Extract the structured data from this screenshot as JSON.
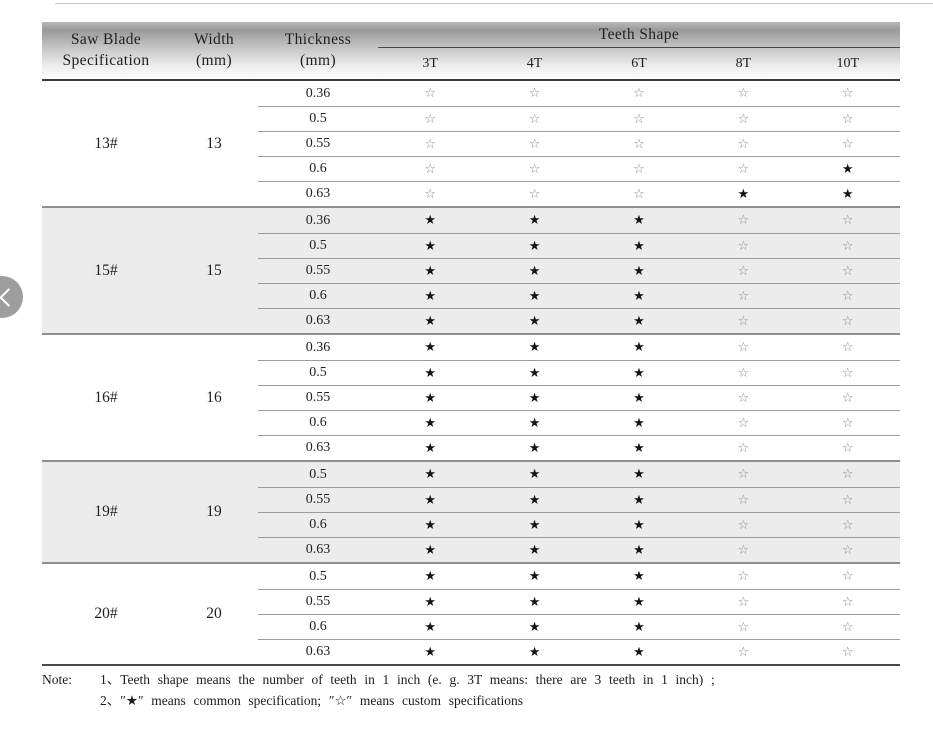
{
  "header": {
    "spec_line1": "Saw Blade",
    "spec_line2": "Specification",
    "width_line1": "Width",
    "width_line2": "(mm)",
    "thickness_line1": "Thickness",
    "thickness_line2": "(mm)",
    "teeth_shape": "Teeth Shape",
    "teeth_columns": [
      "3T",
      "4T",
      "6T",
      "8T",
      "10T"
    ]
  },
  "groups": [
    {
      "spec": "13#",
      "width": "13",
      "shaded": false,
      "rows": [
        {
          "thickness": "0.36",
          "stars": [
            "☆",
            "☆",
            "☆",
            "☆",
            "☆"
          ]
        },
        {
          "thickness": "0.5",
          "stars": [
            "☆",
            "☆",
            "☆",
            "☆",
            "☆"
          ]
        },
        {
          "thickness": "0.55",
          "stars": [
            "☆",
            "☆",
            "☆",
            "☆",
            "☆"
          ]
        },
        {
          "thickness": "0.6",
          "stars": [
            "☆",
            "☆",
            "☆",
            "☆",
            "★"
          ]
        },
        {
          "thickness": "0.63",
          "stars": [
            "☆",
            "☆",
            "☆",
            "★",
            "★"
          ]
        }
      ]
    },
    {
      "spec": "15#",
      "width": "15",
      "shaded": true,
      "rows": [
        {
          "thickness": "0.36",
          "stars": [
            "★",
            "★",
            "★",
            "☆",
            "☆"
          ]
        },
        {
          "thickness": "0.5",
          "stars": [
            "★",
            "★",
            "★",
            "☆",
            "☆"
          ]
        },
        {
          "thickness": "0.55",
          "stars": [
            "★",
            "★",
            "★",
            "☆",
            "☆"
          ]
        },
        {
          "thickness": "0.6",
          "stars": [
            "★",
            "★",
            "★",
            "☆",
            "☆"
          ]
        },
        {
          "thickness": "0.63",
          "stars": [
            "★",
            "★",
            "★",
            "☆",
            "☆"
          ]
        }
      ]
    },
    {
      "spec": "16#",
      "width": "16",
      "shaded": false,
      "rows": [
        {
          "thickness": "0.36",
          "stars": [
            "★",
            "★",
            "★",
            "☆",
            "☆"
          ]
        },
        {
          "thickness": "0.5",
          "stars": [
            "★",
            "★",
            "★",
            "☆",
            "☆"
          ]
        },
        {
          "thickness": "0.55",
          "stars": [
            "★",
            "★",
            "★",
            "☆",
            "☆"
          ]
        },
        {
          "thickness": "0.6",
          "stars": [
            "★",
            "★",
            "★",
            "☆",
            "☆"
          ]
        },
        {
          "thickness": "0.63",
          "stars": [
            "★",
            "★",
            "★",
            "☆",
            "☆"
          ]
        }
      ]
    },
    {
      "spec": "19#",
      "width": "19",
      "shaded": true,
      "rows": [
        {
          "thickness": "0.5",
          "stars": [
            "★",
            "★",
            "★",
            "☆",
            "☆"
          ]
        },
        {
          "thickness": "0.55",
          "stars": [
            "★",
            "★",
            "★",
            "☆",
            "☆"
          ]
        },
        {
          "thickness": "0.6",
          "stars": [
            "★",
            "★",
            "★",
            "☆",
            "☆"
          ]
        },
        {
          "thickness": "0.63",
          "stars": [
            "★",
            "★",
            "★",
            "☆",
            "☆"
          ]
        }
      ]
    },
    {
      "spec": "20#",
      "width": "20",
      "shaded": false,
      "rows": [
        {
          "thickness": "0.5",
          "stars": [
            "★",
            "★",
            "★",
            "☆",
            "☆"
          ]
        },
        {
          "thickness": "0.55",
          "stars": [
            "★",
            "★",
            "★",
            "☆",
            "☆"
          ]
        },
        {
          "thickness": "0.6",
          "stars": [
            "★",
            "★",
            "★",
            "☆",
            "☆"
          ]
        },
        {
          "thickness": "0.63",
          "stars": [
            "★",
            "★",
            "★",
            "☆",
            "☆"
          ]
        }
      ]
    }
  ],
  "symbols": {
    "common": "★",
    "custom": "☆"
  },
  "note": {
    "prefix": "Note:",
    "items": [
      "1、Teeth shape means the number of teeth in 1 inch (e. g.  3T  means: there are 3 teeth in 1 inch) ;",
      "2、″★″ means common specification;  ″☆″ means custom specifications"
    ]
  },
  "nav": {
    "back_icon": "chevron-left"
  },
  "colors": {
    "header_gradient_top": "#9a9a9a",
    "shaded_group_bg": "#ececec",
    "star_filled": "#141414",
    "star_outline": "#8a8a8a",
    "rule_dark": "#3a3a3a",
    "rule_mid": "#8f8f8f",
    "nav_circle": "#9d9d9d"
  }
}
